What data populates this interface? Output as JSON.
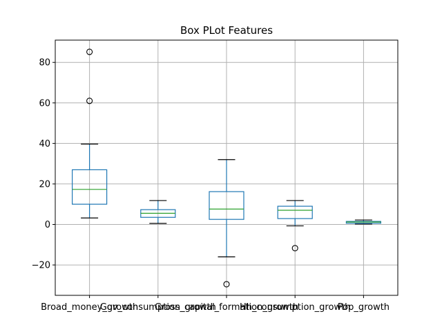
{
  "chart_data": {
    "type": "box",
    "title": "Box PLot Features",
    "xlabel": "",
    "ylabel": "",
    "ylim": [
      -35,
      91
    ],
    "yticks": [
      -20,
      0,
      20,
      40,
      60,
      80
    ],
    "grid": true,
    "legend": "none",
    "colors": {
      "box": "#1f77b4",
      "median": "#2ca02c",
      "grid": "#b0b0b0",
      "axis": "#000000"
    },
    "categories": [
      "Broad_money_growth",
      "Gov_consumption_growth",
      "Gross_capital_formation_growth",
      "Hh_consumption_growth",
      "Pop_growth"
    ],
    "boxes": [
      {
        "whislo": 3.2,
        "q1": 10.0,
        "med": 17.3,
        "q3": 27.0,
        "whishi": 39.7,
        "fliers": [
          61.0,
          85.2
        ]
      },
      {
        "whislo": 0.5,
        "q1": 3.5,
        "med": 5.5,
        "q3": 7.3,
        "whishi": 11.8,
        "fliers": []
      },
      {
        "whislo": -16.0,
        "q1": 2.5,
        "med": 7.6,
        "q3": 16.2,
        "whishi": 32.0,
        "fliers": [
          -29.5
        ]
      },
      {
        "whislo": -0.7,
        "q1": 2.9,
        "med": 7.0,
        "q3": 9.0,
        "whishi": 11.8,
        "fliers": [
          -11.7
        ]
      },
      {
        "whislo": 0.2,
        "q1": 0.6,
        "med": 1.2,
        "q3": 1.5,
        "whishi": 2.2,
        "fliers": []
      }
    ]
  }
}
